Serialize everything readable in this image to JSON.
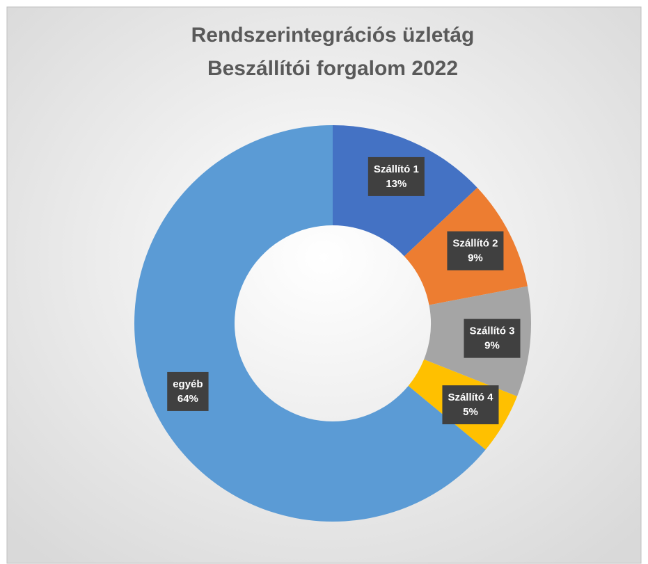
{
  "chart_data": {
    "type": "donut",
    "title": "Rendszerintegrációs üzletág",
    "subtitle": "Beszállítói forgalom 2022",
    "categories": [
      "Szállító 1",
      "Szállító 2",
      "Szállító 3",
      "Szállító 4",
      "egyéb"
    ],
    "values": [
      13,
      9,
      9,
      5,
      64
    ],
    "value_labels": [
      "13%",
      "9%",
      "9%",
      "5%",
      "64%"
    ],
    "colors": [
      "#4472c4",
      "#ed7d31",
      "#a5a5a5",
      "#ffc000",
      "#5b9bd5"
    ]
  }
}
